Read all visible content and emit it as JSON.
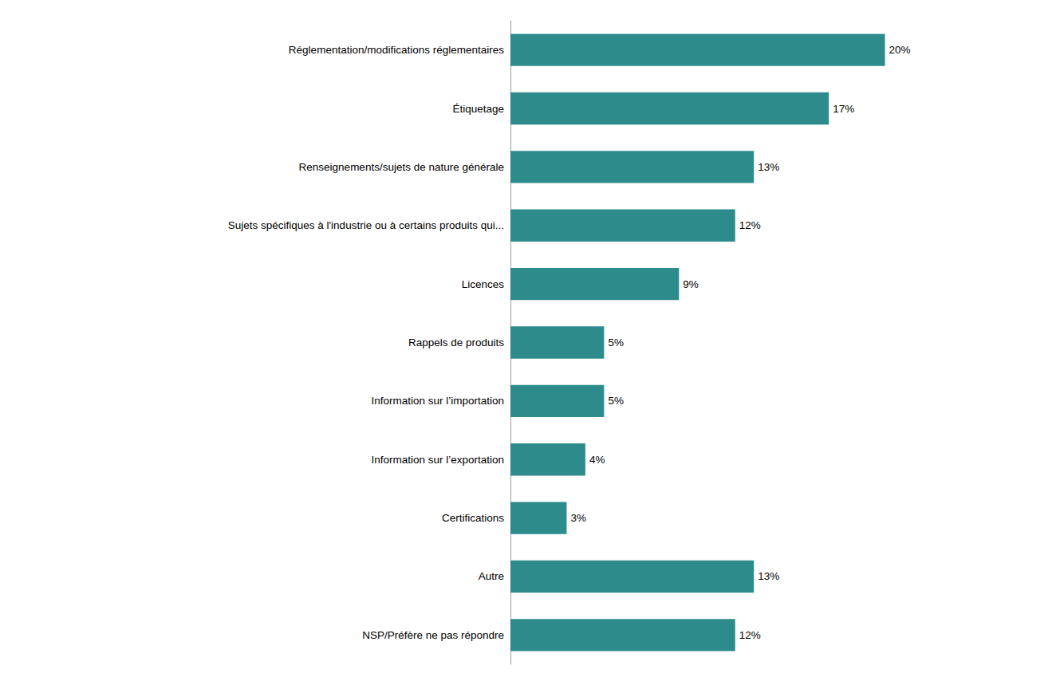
{
  "chart_data": {
    "type": "bar",
    "orientation": "horizontal",
    "categories": [
      "NSP/Préfère ne pas répondre",
      "Autre",
      "Certifications",
      "Information sur l’exportation",
      "Information sur l’importation",
      "Rappels de produits",
      "Licences",
      "Sujets spécifiques à l'industrie ou à certains produits qui...",
      "Renseignements/sujets de nature générale",
      "Étiquetage",
      "Réglementation/modifications réglementaires"
    ],
    "values": [
      12,
      13,
      3,
      4,
      5,
      5,
      9,
      12,
      13,
      17,
      20
    ],
    "value_labels": [
      "12%",
      "13%",
      "3%",
      "4%",
      "5%",
      "5%",
      "9%",
      "12%",
      "13%",
      "17%",
      "20%"
    ],
    "color": "#2e8b8b",
    "xlim": [
      0,
      25
    ],
    "data_labels": true,
    "tick_labels": "y",
    "grid": false
  }
}
